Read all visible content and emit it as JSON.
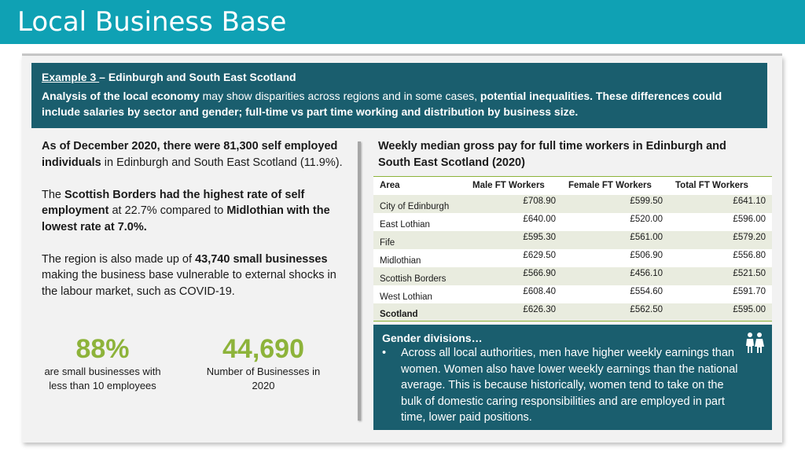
{
  "header": {
    "title": "Local Business Base"
  },
  "banner": {
    "example_label": "Example 3 ",
    "example_rest": "– Edinburgh and South East Scotland",
    "p1_bold": "Analysis of the local economy",
    "p1_rest": " may show disparities across regions and in some cases, ",
    "p1_bold2": "potential inequalities. These differences could include salaries by sector and gender; full-time vs part time working and distribution by business size."
  },
  "left": {
    "para1_bold": "As of December 2020, there were 81,300 self employed individuals",
    "para1_rest": " in Edinburgh and South East Scotland (11.9%).",
    "para2_a": "The ",
    "para2_bold": "Scottish Borders had the highest rate of self employment",
    "para2_b": " at 22.7% compared to ",
    "para2_bold2": "Midlothian with the lowest rate at 7.0%.",
    "para3_a": "The region is also made up of ",
    "para3_bold": "43,740 small businesses",
    "para3_b": " making the business base vulnerable to external shocks in the labour market, such as COVID-19."
  },
  "stats": [
    {
      "value": "88%",
      "caption": "are small businesses with less than 10 employees"
    },
    {
      "value": "44,690",
      "caption": "Number of Businesses in 2020"
    }
  ],
  "table": {
    "title": "Weekly median gross pay for full time workers in Edinburgh and South East Scotland (2020)",
    "headers": [
      "Area",
      "Male FT Workers",
      "Female FT Workers",
      "Total FT Workers"
    ],
    "rows": [
      [
        "City of Edinburgh",
        "£708.90",
        "£599.50",
        "£641.10"
      ],
      [
        "East Lothian",
        "£640.00",
        "£520.00",
        "£596.00"
      ],
      [
        "Fife",
        "£595.30",
        "£561.00",
        "£579.20"
      ],
      [
        "Midlothian",
        "£629.50",
        "£506.90",
        "£556.80"
      ],
      [
        "Scottish Borders",
        "£566.90",
        "£456.10",
        "£521.50"
      ],
      [
        "West Lothian",
        "£608.40",
        "£554.60",
        "£591.70"
      ],
      [
        "Scotland",
        "£626.30",
        "£562.50",
        "£595.00"
      ]
    ]
  },
  "gender": {
    "heading": "Gender divisions…",
    "bullet": "•",
    "text": "Across all local authorities, men have higher weekly earnings than women. Women also have lower weekly earnings than the national average. This is because historically, women tend to take on the bulk of domestic caring responsibilities and are employed in part time, lower paid positions.",
    "icon": "people-icon"
  }
}
